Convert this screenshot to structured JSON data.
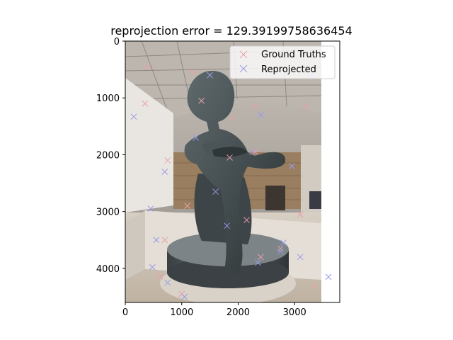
{
  "chart_data": {
    "type": "scatter",
    "title": "reprojection error = 129.39199758636454",
    "xlabel": "",
    "ylabel": "",
    "xlim": [
      0,
      3800
    ],
    "ylim": [
      4600,
      0
    ],
    "y_inverted": true,
    "x_ticks": [
      "0",
      "1000",
      "2000",
      "3000"
    ],
    "x_tick_values": [
      0,
      1000,
      2000,
      3000
    ],
    "y_ticks": [
      "0",
      "1000",
      "2000",
      "3000",
      "4000"
    ],
    "y_tick_values": [
      0,
      1000,
      2000,
      3000,
      4000
    ],
    "image_extent": [
      0,
      3456,
      4608,
      0
    ],
    "background": "photograph of a bronze statue of a seated boy (Spinario) on a round stone base in a museum hall",
    "legend": {
      "location": "upper right",
      "entries": [
        "Ground Truths",
        "Reprojected"
      ]
    },
    "series": [
      {
        "name": "Ground Truths",
        "marker": "x",
        "color": "#e8a0a8",
        "points": [
          [
            400,
            450
          ],
          [
            1200,
            550
          ],
          [
            2800,
            450
          ],
          [
            350,
            1100
          ],
          [
            1350,
            1050
          ],
          [
            1900,
            1350
          ],
          [
            2300,
            1150
          ],
          [
            3200,
            1150
          ],
          [
            2300,
            1950
          ],
          [
            750,
            2100
          ],
          [
            1850,
            2050
          ],
          [
            1100,
            2900
          ],
          [
            2150,
            3150
          ],
          [
            3100,
            3050
          ],
          [
            700,
            3500
          ],
          [
            2750,
            3650
          ],
          [
            620,
            4150
          ],
          [
            1000,
            4450
          ],
          [
            3350,
            4300
          ],
          [
            2400,
            3800
          ]
        ]
      },
      {
        "name": "Reprojected",
        "marker": "x",
        "color": "#9a9ae6",
        "points": [
          [
            150,
            1330
          ],
          [
            2400,
            1300
          ],
          [
            2250,
            1950
          ],
          [
            700,
            2300
          ],
          [
            1600,
            2650
          ],
          [
            1800,
            3250
          ],
          [
            550,
            3500
          ],
          [
            2800,
            3550
          ],
          [
            2750,
            3700
          ],
          [
            3100,
            3800
          ],
          [
            480,
            3980
          ],
          [
            750,
            4250
          ],
          [
            1050,
            4500
          ],
          [
            3600,
            4150
          ],
          [
            2350,
            3900
          ],
          [
            1250,
            1700
          ],
          [
            2950,
            2200
          ],
          [
            450,
            2950
          ],
          [
            3300,
            600
          ],
          [
            1500,
            600
          ]
        ]
      }
    ]
  }
}
